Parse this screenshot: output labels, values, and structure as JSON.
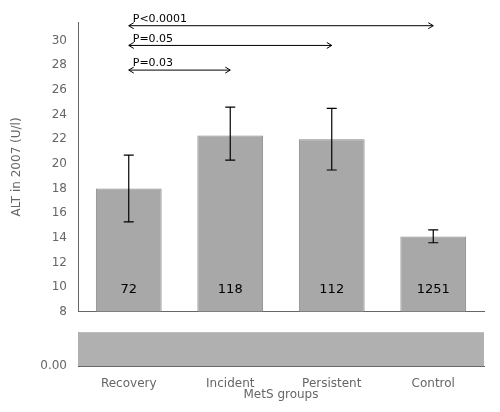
{
  "chart_data": [
    {
      "type": "bar",
      "categories": [
        "Recovery",
        "Incident",
        "Persistent",
        "Control"
      ],
      "values": [
        18.0,
        22.3,
        22.0,
        14.1
      ],
      "ci_lower": [
        15.3,
        20.3,
        19.5,
        13.6
      ],
      "ci_upper": [
        20.7,
        24.6,
        24.5,
        14.65
      ],
      "color": "#a8a8a8",
      "ylabel": "ALT in 2007 (U/l)",
      "ylim": [
        8,
        31.5
      ],
      "yticks": [
        8,
        10,
        12,
        14,
        16,
        18,
        20,
        22,
        24,
        26,
        28,
        30
      ],
      "grid": false,
      "tick_labels": "y",
      "annotations": [
        {
          "label": "P<0.0001",
          "x_start": "Recovery",
          "x_end": "Control",
          "y": 31.2
        },
        {
          "label": "P=0.05",
          "x_start": "Recovery",
          "x_end": "Persistent",
          "y": 29.6
        },
        {
          "label": "P=0.03",
          "x_start": "Recovery",
          "x_end": "Incident",
          "y": 27.6
        },
        {
          "label": "72",
          "x": "Recovery",
          "y": 9.3
        },
        {
          "label": "118",
          "x": "Incident",
          "y": 9.3
        },
        {
          "label": "112",
          "x": "Persistent",
          "y": 9.3
        },
        {
          "label": "1251",
          "x": "Control",
          "y": 9.3
        }
      ]
    },
    {
      "type": "bar",
      "categories": [
        "Recovery",
        "Incident",
        "Persistent",
        "Control"
      ],
      "xlabel": "MetS groups",
      "ylim": [
        0,
        7.8
      ],
      "yticks": [
        {
          "value": 0,
          "label": "0.00"
        }
      ],
      "color": "#b0b0b0",
      "grid": false
    }
  ]
}
